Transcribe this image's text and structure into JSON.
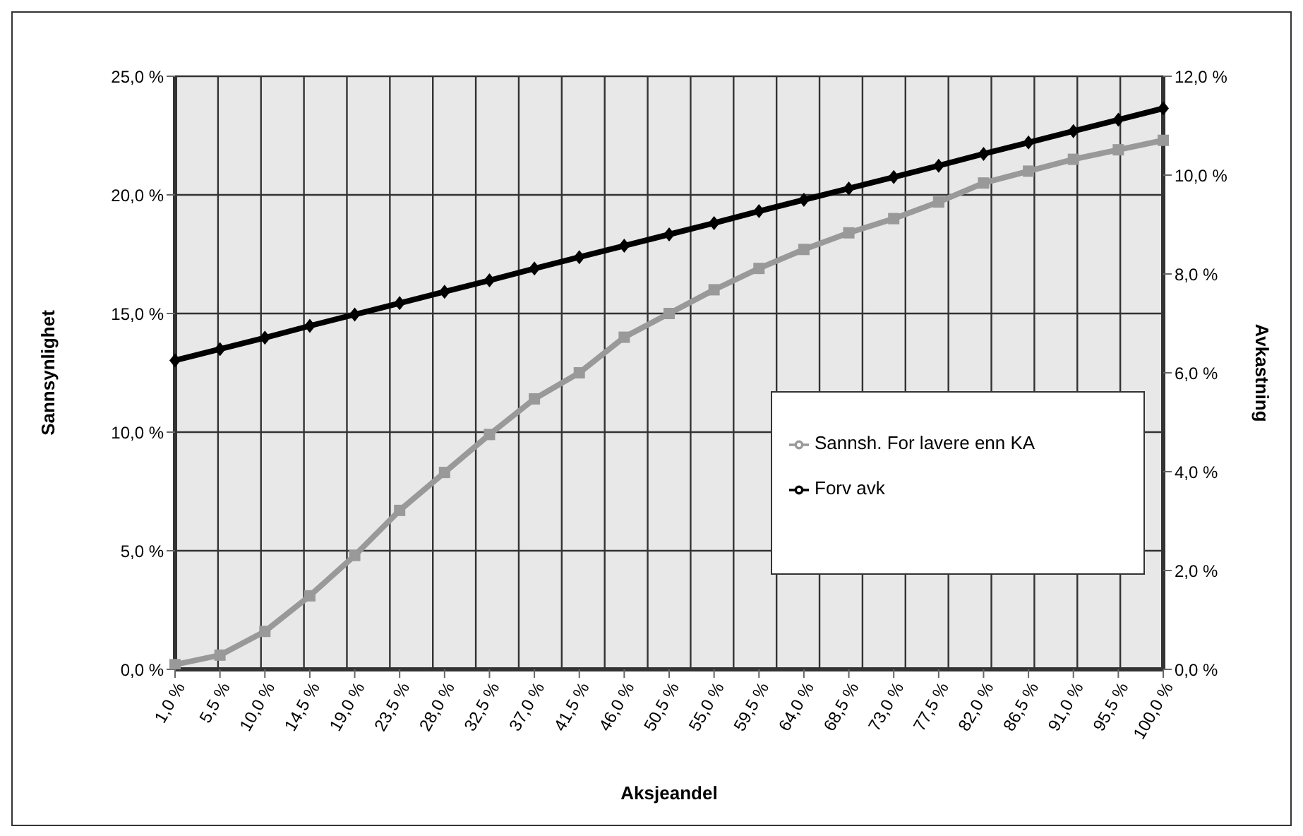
{
  "chart_data": {
    "type": "line",
    "xlabel": "Aksjeandel",
    "ylabel": "Sannsynlighet",
    "y2label": "Avkastning",
    "categories": [
      "1,0 %",
      "5,5 %",
      "10,0 %",
      "14,5 %",
      "19,0 %",
      "23,5 %",
      "28,0 %",
      "32,5 %",
      "37,0 %",
      "41,5 %",
      "46,0 %",
      "50,5 %",
      "55,0 %",
      "59,5 %",
      "64,0 %",
      "68,5 %",
      "73,0 %",
      "77,5 %",
      "82,0 %",
      "86,5 %",
      "91,0 %",
      "95,5 %",
      "100,0 %"
    ],
    "series": [
      {
        "name": "Sannsh. For lavere enn KA",
        "color": "#999999",
        "marker": "square",
        "values": [
          0.2,
          0.6,
          1.6,
          3.1,
          4.8,
          6.7,
          8.3,
          9.9,
          11.4,
          12.5,
          14.0,
          15.0,
          16.0,
          16.9,
          17.7,
          18.4,
          19.0,
          19.7,
          20.5,
          21.0,
          21.5,
          21.9,
          22.3
        ]
      },
      {
        "name": "Forv avk",
        "color": "#000000",
        "marker": "diamond",
        "axis": "y2",
        "values": [
          6.25,
          6.48,
          6.71,
          6.95,
          7.18,
          7.41,
          7.64,
          7.87,
          8.11,
          8.34,
          8.57,
          8.8,
          9.03,
          9.27,
          9.5,
          9.73,
          9.96,
          10.19,
          10.43,
          10.66,
          10.89,
          11.12,
          11.35
        ]
      }
    ],
    "ylim": [
      0,
      25
    ],
    "yticks": [
      {
        "value": 0,
        "label": "0,0 %"
      },
      {
        "value": 5,
        "label": "5,0 %"
      },
      {
        "value": 10,
        "label": "10,0 %"
      },
      {
        "value": 15,
        "label": "15,0 %"
      },
      {
        "value": 20,
        "label": "20,0 %"
      },
      {
        "value": 25,
        "label": "25,0 %"
      }
    ],
    "y2lim": [
      0,
      12
    ],
    "y2ticks": [
      {
        "value": 0,
        "label": "0,0 %"
      },
      {
        "value": 2,
        "label": "2,0 %"
      },
      {
        "value": 4,
        "label": "4,0 %"
      },
      {
        "value": 6,
        "label": "6,0 %"
      },
      {
        "value": 8,
        "label": "8,0 %"
      },
      {
        "value": 10,
        "label": "10,0 %"
      },
      {
        "value": 12,
        "label": "12,0 %"
      }
    ],
    "grid": true,
    "legend": "right"
  }
}
